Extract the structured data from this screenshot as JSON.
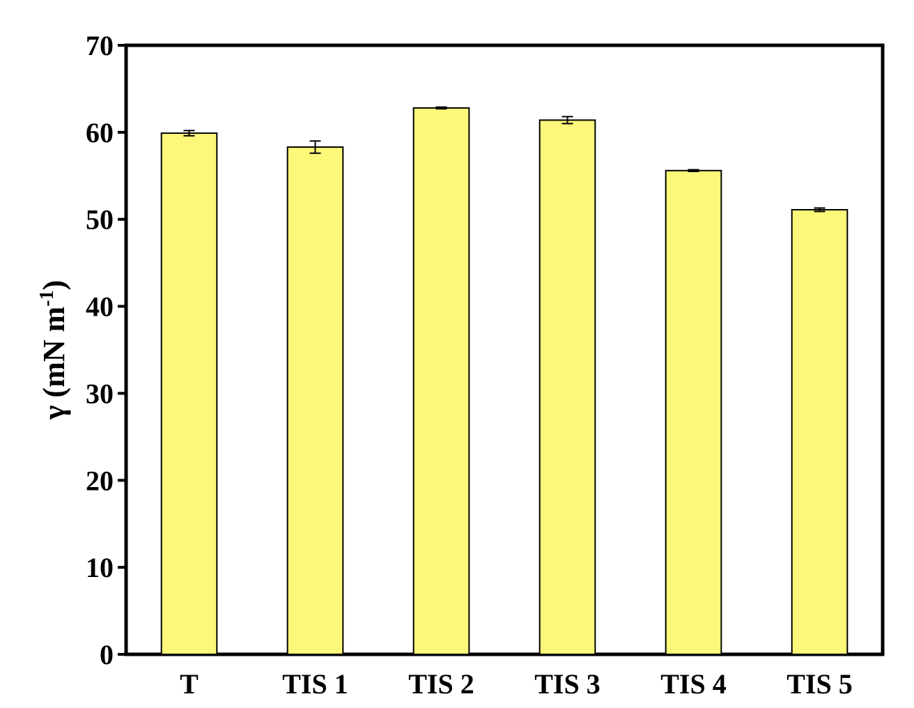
{
  "chart_data": {
    "type": "bar",
    "title": "",
    "xlabel": "",
    "ylabel": "γ (mN m",
    "ylabel_superscript": "-1",
    "ylabel_close": ")",
    "categories": [
      "T",
      "TIS 1",
      "TIS 2",
      "TIS 3",
      "TIS 4",
      "TIS 5"
    ],
    "values": [
      59.9,
      58.3,
      62.8,
      61.4,
      55.6,
      51.1
    ],
    "errors": [
      0.3,
      0.7,
      0.1,
      0.4,
      0.1,
      0.2
    ],
    "ylim": [
      0,
      70
    ],
    "yticks": [
      0,
      10,
      20,
      30,
      40,
      50,
      60,
      70
    ],
    "grid": false,
    "legend": "none",
    "bar_color": "#fcf97a",
    "bar_edge_color": "#000000"
  }
}
